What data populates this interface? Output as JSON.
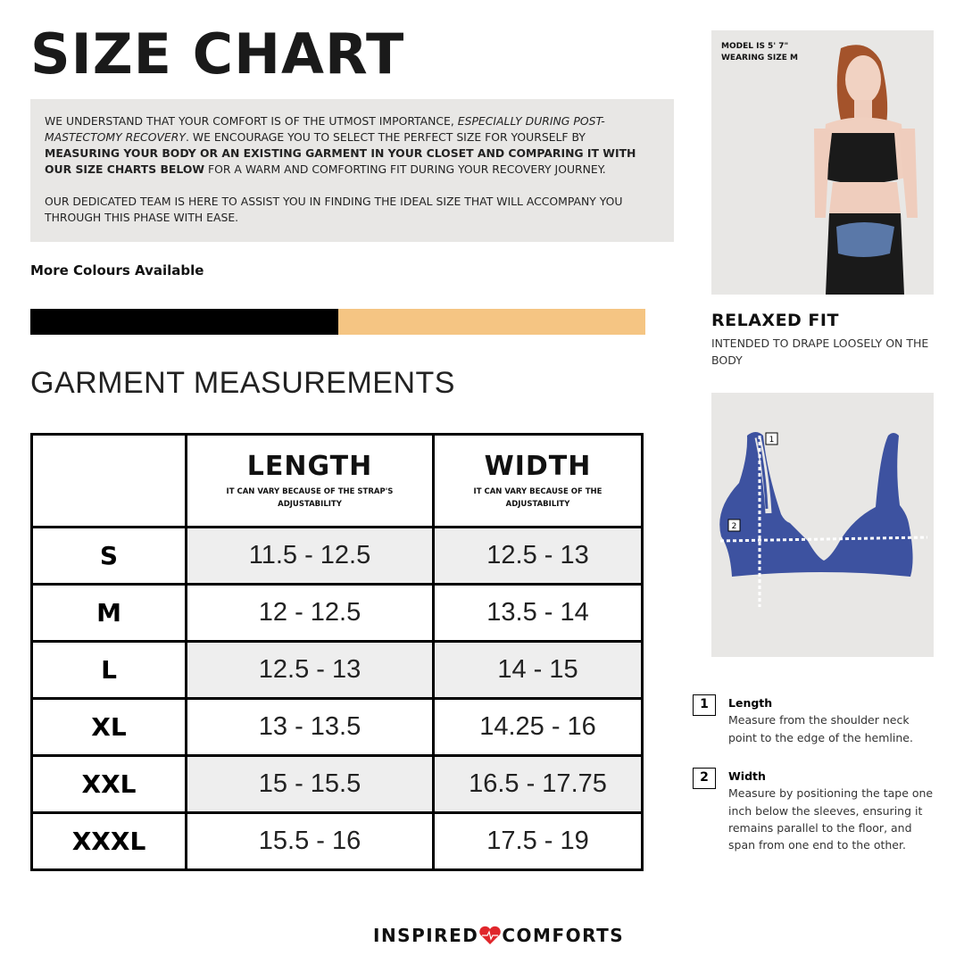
{
  "title": "SIZE CHART",
  "intro": {
    "p1_a": "WE UNDERSTAND THAT YOUR COMFORT IS OF THE UTMOST IMPORTANCE, ",
    "p1_b": "ESPECIALLY DURING POST-MASTECTOMY RECOVERY",
    "p1_c": ". WE ENCOURAGE YOU TO SELECT THE PERFECT SIZE FOR YOURSELF BY ",
    "p1_d": "MEASURING YOUR BODY OR AN EXISTING GARMENT IN YOUR CLOSET AND COMPARING IT WITH OUR SIZE CHARTS BELOW",
    "p1_e": " FOR A WARM AND COMFORTING FIT DURING YOUR RECOVERY JOURNEY.",
    "p2": "OUR DEDICATED TEAM IS HERE TO ASSIST YOU IN FINDING THE IDEAL SIZE THAT WILL ACCOMPANY YOU THROUGH THIS PHASE WITH EASE."
  },
  "more_colours": "More Colours Available",
  "colours": [
    "#000000",
    "#f5c583"
  ],
  "section_title": "GARMENT MEASUREMENTS",
  "table": {
    "headers": [
      {
        "label": "LENGTH",
        "sub": "IT CAN VARY BECAUSE OF THE STRAP'S ADJUSTABILITY"
      },
      {
        "label": "WIDTH",
        "sub": "IT CAN VARY BECAUSE OF THE ADJUSTABILITY"
      }
    ],
    "rows": [
      {
        "size": "S",
        "length": "11.5 - 12.5",
        "width": "12.5 - 13"
      },
      {
        "size": "M",
        "length": "12 - 12.5",
        "width": "13.5 - 14"
      },
      {
        "size": "L",
        "length": "12.5 - 13",
        "width": "14 - 15"
      },
      {
        "size": "XL",
        "length": "13 - 13.5",
        "width": "14.25 - 16"
      },
      {
        "size": "XXL",
        "length": "15 - 15.5",
        "width": "16.5 - 17.75"
      },
      {
        "size": "XXXL",
        "length": "15.5 - 16",
        "width": "17.5 - 19"
      }
    ]
  },
  "model": {
    "line1": "MODEL IS 5' 7\"",
    "line2": "WEARING SIZE M"
  },
  "fit": {
    "title": "RELAXED FIT",
    "desc": "INTENDED TO DRAPE LOOSELY ON THE BODY"
  },
  "diagram": {
    "color": "#3d52a0",
    "markers": [
      "1",
      "2"
    ]
  },
  "legend": [
    {
      "num": "1",
      "title": "Length",
      "desc": "Measure from the shoulder neck point to the edge of the hemline."
    },
    {
      "num": "2",
      "title": "Width",
      "desc": "Measure by positioning the tape one inch below the sleeves, ensuring it remains parallel to the floor, and span from one end to the other."
    }
  ],
  "brand": {
    "left": "INSPIRED",
    "right": "COMFORTS",
    "heart_color": "#e0262b"
  }
}
